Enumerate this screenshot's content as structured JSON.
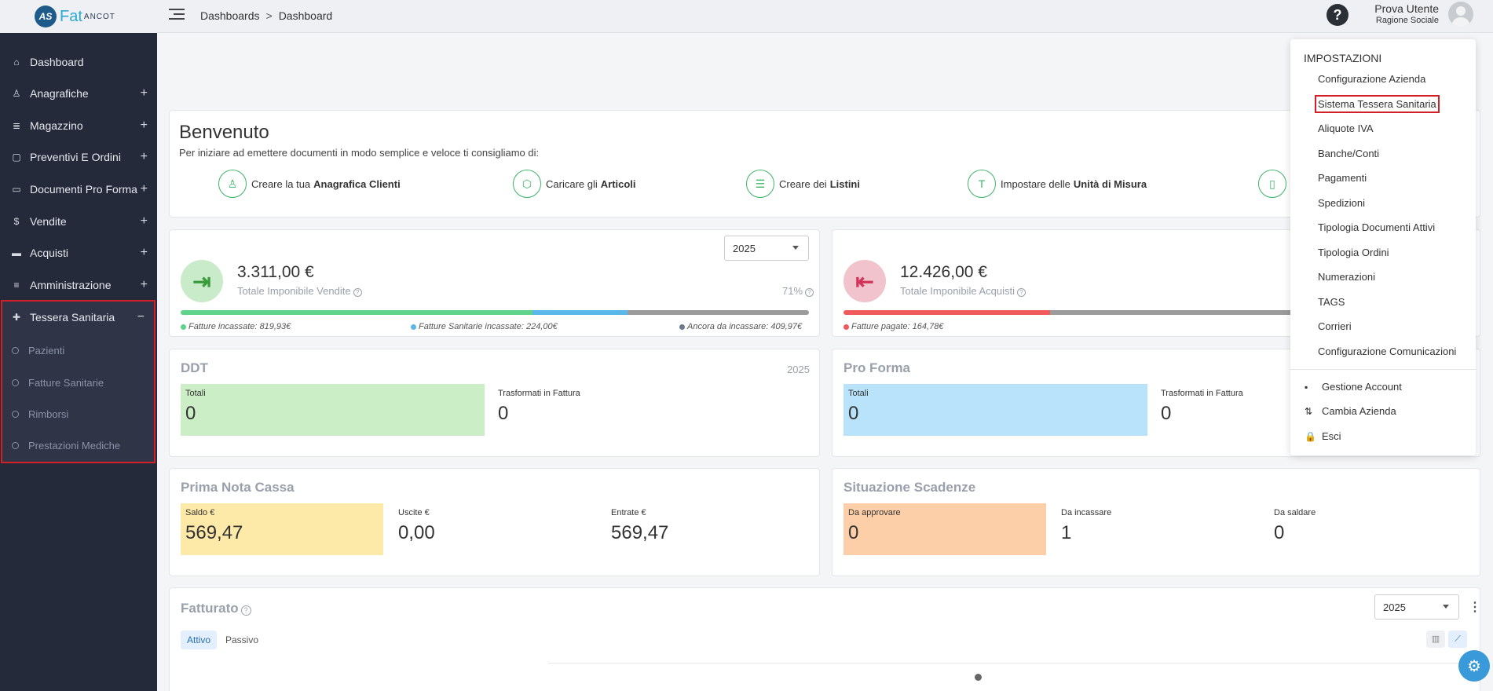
{
  "topbar": {
    "logo_text": "Fat",
    "logo_small": "ANCOT",
    "breadcrumb_parent": "Dashboards",
    "breadcrumb_sep": ">",
    "breadcrumb_current": "Dashboard",
    "help": "?",
    "user_name": "Prova Utente",
    "user_company": "Ragione Sociale"
  },
  "sidebar": {
    "items": [
      {
        "label": "Dashboard",
        "icon": "home-icon",
        "glyph": "⌂"
      },
      {
        "label": "Anagrafiche",
        "icon": "user-icon",
        "glyph": "♙"
      },
      {
        "label": "Magazzino",
        "icon": "warehouse-icon",
        "glyph": "≣"
      },
      {
        "label": "Preventivi E Ordini",
        "icon": "clipboard-icon",
        "glyph": "▢"
      },
      {
        "label": "Documenti Pro Forma",
        "icon": "document-icon",
        "glyph": "▭"
      },
      {
        "label": "Vendite",
        "icon": "dollar-icon",
        "glyph": "$"
      },
      {
        "label": "Acquisti",
        "icon": "card-icon",
        "glyph": "▬"
      },
      {
        "label": "Amministrazione",
        "icon": "database-icon",
        "glyph": "≡"
      },
      {
        "label": "Tessera Sanitaria",
        "icon": "medical-icon",
        "glyph": "✚"
      }
    ],
    "plus": "+",
    "minus": "−",
    "sub_items": [
      "Pazienti",
      "Fatture Sanitarie",
      "Rimborsi",
      "Prestazioni Mediche"
    ]
  },
  "welcome": {
    "title": "Benvenuto",
    "subtitle": "Per iniziare ad emettere documenti in modo semplice e veloce ti consigliamo di:",
    "actions": [
      {
        "prefix": "Creare la tua",
        "bold": "Anagrafica Clienti",
        "icon": "user-icon"
      },
      {
        "prefix": "Caricare gli",
        "bold": "Articoli",
        "icon": "box-icon"
      },
      {
        "prefix": "Creare dei",
        "bold": "Listini",
        "icon": "list-icon"
      },
      {
        "prefix": "Impostare delle",
        "bold": "Unità di Misura",
        "icon": "hammer-icon"
      },
      {
        "prefix": "",
        "bold": "",
        "icon": "document-icon"
      }
    ]
  },
  "sales": {
    "year": "2025",
    "amount": "3.311,00 €",
    "label": "Totale Imponibile Vendite",
    "percent": "71%",
    "bar_segments": [
      {
        "color": "#5fd38a",
        "fraction": 0.5605
      },
      {
        "color": "#5ab7ea",
        "fraction": 0.1508
      },
      {
        "color": "#9b9b9b",
        "fraction": 0.2887
      }
    ],
    "legend": [
      {
        "text": "Fatture incassate: 819,93€",
        "color": "#5fd38a"
      },
      {
        "text": "Fatture Sanitarie incassate: 224,00€",
        "color": "#5ab7ea"
      },
      {
        "text": "Ancora da incassare: 409,97€",
        "color": "#6c7a8c"
      }
    ]
  },
  "purchases": {
    "amount": "12.426,00 €",
    "label": "Totale Imponibile Acquisti",
    "bar_segments": [
      {
        "color": "#f05a5a",
        "fraction": 0.33
      },
      {
        "color": "#9b9b9b",
        "fraction": 0.67
      }
    ],
    "legend": [
      {
        "text": "Fatture pagate: 164,78€",
        "color": "#f05a5a"
      }
    ]
  },
  "ddt": {
    "title": "DDT",
    "year": "2025",
    "boxes": [
      {
        "label": "Totali",
        "value": "0"
      },
      {
        "label": "Trasformati in Fattura",
        "value": "0"
      }
    ]
  },
  "proforma": {
    "title": "Pro Forma",
    "boxes": [
      {
        "label": "Totali",
        "value": "0"
      },
      {
        "label": "Trasformati in Fattura",
        "value": "0"
      }
    ]
  },
  "cassa": {
    "title": "Prima Nota Cassa",
    "boxes": [
      {
        "label": "Saldo €",
        "value": "569,47"
      },
      {
        "label": "Uscite €",
        "value": "0,00"
      },
      {
        "label": "Entrate €",
        "value": "569,47"
      }
    ]
  },
  "scadenze": {
    "title": "Situazione Scadenze",
    "boxes": [
      {
        "label": "Da approvare",
        "value": "0"
      },
      {
        "label": "Da incassare",
        "value": "1"
      },
      {
        "label": "Da saldare",
        "value": "0"
      }
    ]
  },
  "fatturato": {
    "title": "Fatturato",
    "year": "2025",
    "tabs": [
      "Attivo",
      "Passivo"
    ]
  },
  "menu": {
    "header": "IMPOSTAZIONI",
    "items": [
      "Configurazione Azienda",
      "Sistema Tessera Sanitaria",
      "Aliquote IVA",
      "Banche/Conti",
      "Pagamenti",
      "Spedizioni",
      "Tipologia Documenti Attivi",
      "Tipologia Ordini",
      "Numerazioni",
      "TAGS",
      "Corrieri",
      "Configurazione Comunicazioni"
    ],
    "account_items": [
      {
        "label": "Gestione Account",
        "icon": "briefcase-icon",
        "glyph": "▪"
      },
      {
        "label": "Cambia Azienda",
        "icon": "swap-icon",
        "glyph": "⇅"
      },
      {
        "label": "Esci",
        "icon": "lock-icon",
        "glyph": "🔒"
      }
    ]
  }
}
